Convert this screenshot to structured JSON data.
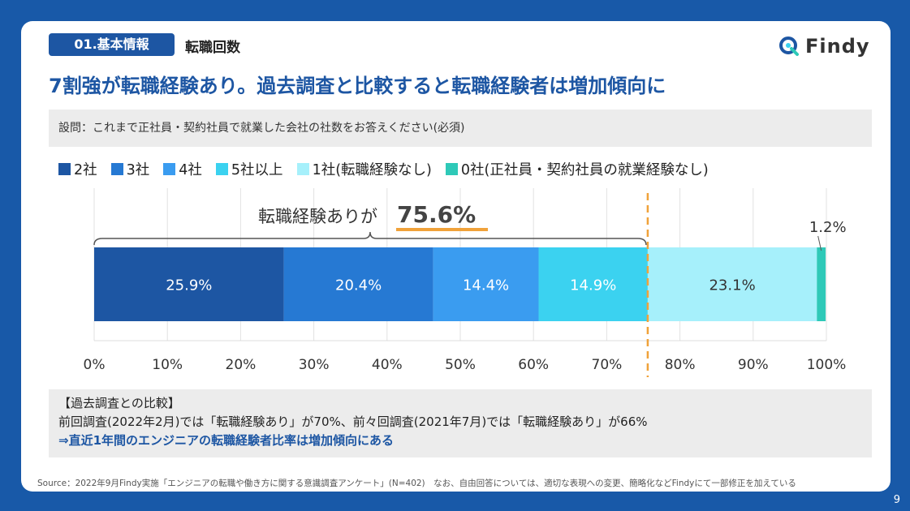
{
  "header": {
    "section_tag": "01.基本情報",
    "section_name": "転職回数",
    "logo_text": "Findy"
  },
  "headline": "7割強が転職経験あり。過去調査と比較すると転職経験者は増加傾向に",
  "question": "設問：これまで正社員・契約社員で就業した会社の社数をお答えください(必須)",
  "chart_data": {
    "type": "bar",
    "orientation": "horizontal-stacked",
    "xlim": [
      0,
      100
    ],
    "x_ticks": [
      "0%",
      "10%",
      "20%",
      "30%",
      "40%",
      "50%",
      "60%",
      "70%",
      "80%",
      "90%",
      "100%"
    ],
    "grid": true,
    "legend_position": "top",
    "series": [
      {
        "name": "2社",
        "value": 25.9,
        "label": "25.9%",
        "color": "#1d56a3"
      },
      {
        "name": "3社",
        "value": 20.4,
        "label": "20.4%",
        "color": "#2679d3"
      },
      {
        "name": "4社",
        "value": 14.4,
        "label": "14.4%",
        "color": "#3a9cf0"
      },
      {
        "name": "5社以上",
        "value": 14.9,
        "label": "14.9%",
        "color": "#3bd2f0"
      },
      {
        "name": "1社(転職経験なし)",
        "value": 23.1,
        "label": "23.1%",
        "color": "#a6f0fb"
      },
      {
        "name": "0社(正社員・契約社員の就業経験なし)",
        "value": 1.2,
        "label": "1.2%",
        "color": "#2ec9b8"
      }
    ],
    "annotation": {
      "prefix": "転職経験ありが",
      "value_text": "75.6%",
      "value": 75.6
    }
  },
  "comparison": {
    "title": "【過去調査との比較】",
    "text": "前回調査(2022年2月)では「転職経験あり」が70%、前々回調査(2021年7月)では「転職経験あり」が66%",
    "conclusion": "⇒直近1年間のエンジニアの転職経験者比率は増加傾向にある"
  },
  "source": "Source：2022年9月Findy実施「エンジニアの転職や働き方に関する意識調査アンケート」(N=402)　なお、自由回答については、適切な表現への変更、簡略化などFindyにて一部修正を加えている",
  "page_number": "9",
  "colors": {
    "brand": "#1d56a3",
    "background": "#1859a8",
    "highlight_line": "#f0a23a",
    "divider": "#f0a23a"
  }
}
